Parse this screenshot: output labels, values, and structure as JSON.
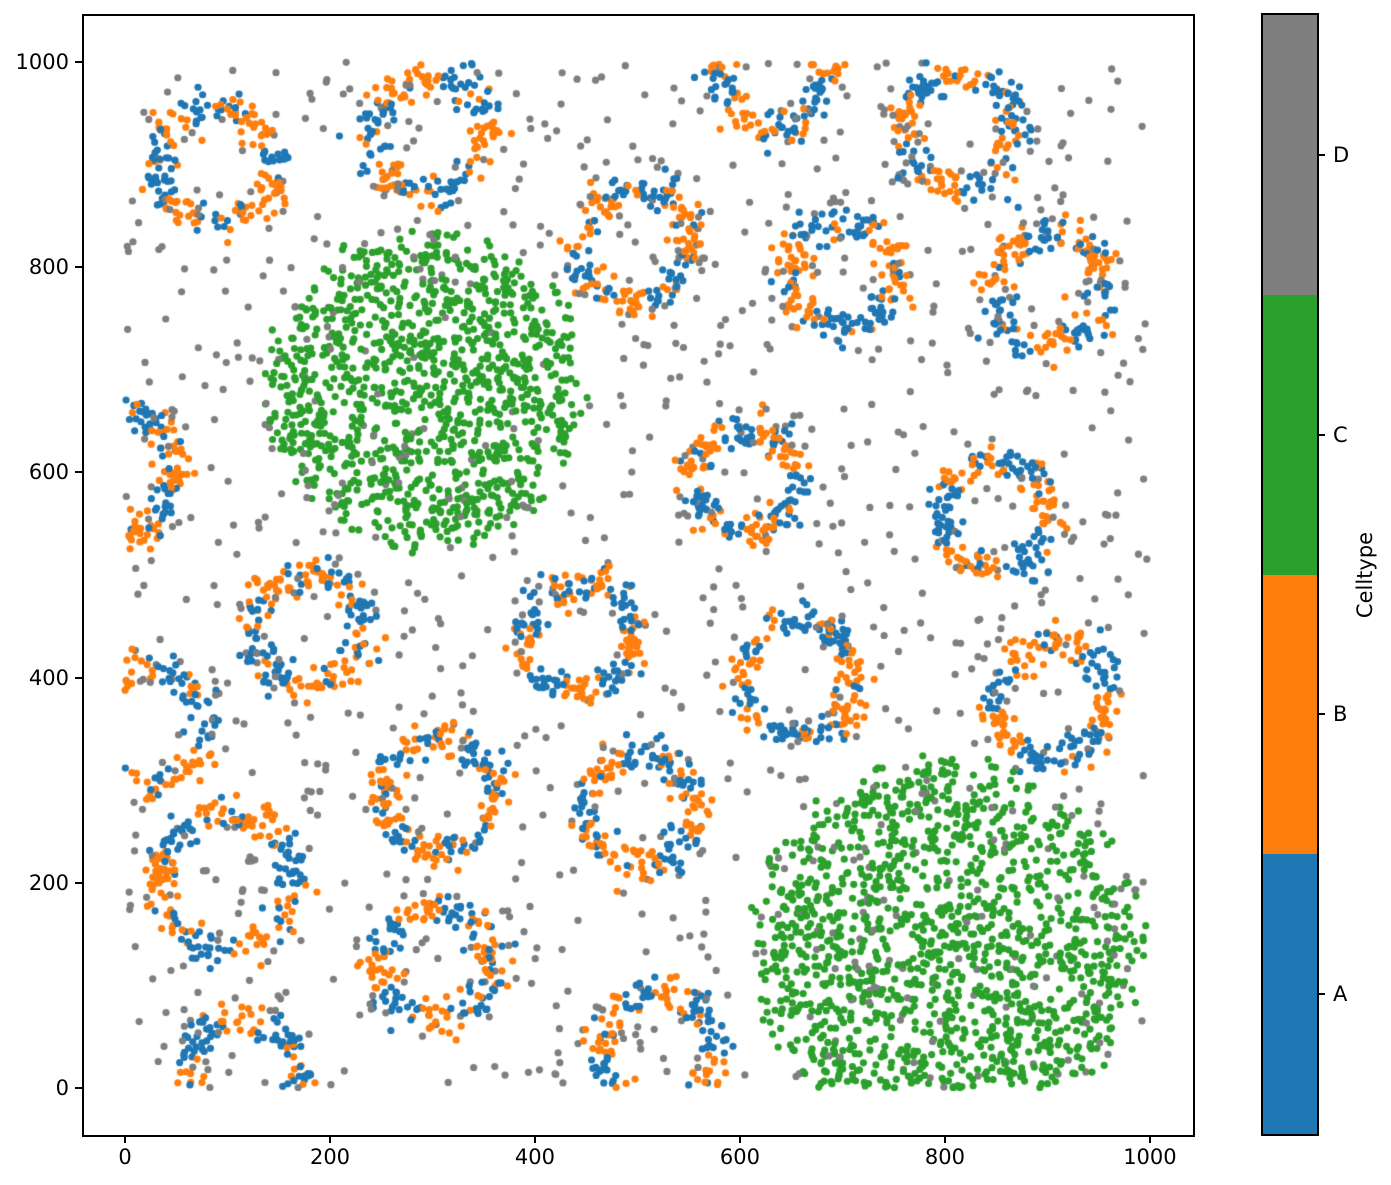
{
  "chart_data": {
    "type": "scatter",
    "title": "",
    "xlabel": "",
    "ylabel": "",
    "xlim": [
      -41,
      1043
    ],
    "ylim": [
      -45,
      1046
    ],
    "data_domain": [
      0,
      1000
    ],
    "xticks": [
      0,
      200,
      400,
      600,
      800,
      1000
    ],
    "yticks": [
      0,
      200,
      400,
      600,
      800,
      1000
    ],
    "grid": false,
    "legend": {
      "title": "Celltype",
      "position": "right-colorbar",
      "entries": [
        {
          "label": "A",
          "color": "#1f77b4"
        },
        {
          "label": "B",
          "color": "#ff7f0e"
        },
        {
          "label": "C",
          "color": "#2ca02c"
        },
        {
          "label": "D",
          "color": "#7f7f7f"
        }
      ]
    },
    "marker_radius_px": 3.6,
    "seed": 1337,
    "clusters": {
      "rings_celltypes": [
        "A",
        "B"
      ],
      "ring_default_points": 185,
      "ring_band_sigma": 9,
      "rings": [
        {
          "x": 88,
          "y": 900,
          "r": 57
        },
        {
          "x": 298,
          "y": 929,
          "r": 57
        },
        {
          "x": 634,
          "y": 985,
          "r": 52
        },
        {
          "x": 815,
          "y": 934,
          "r": 55
        },
        {
          "x": 498,
          "y": 822,
          "r": 55
        },
        {
          "x": 702,
          "y": 795,
          "r": 52
        },
        {
          "x": 900,
          "y": 780,
          "r": 55
        },
        {
          "x": -5,
          "y": 600,
          "r": 56
        },
        {
          "x": 605,
          "y": 593,
          "r": 50
        },
        {
          "x": 849,
          "y": 559,
          "r": 55
        },
        {
          "x": 180,
          "y": 447,
          "r": 55
        },
        {
          "x": 442,
          "y": 439,
          "r": 52
        },
        {
          "x": 659,
          "y": 398,
          "r": 55
        },
        {
          "x": 905,
          "y": 379,
          "r": 55
        },
        {
          "x": 22,
          "y": 354,
          "r": 58
        },
        {
          "x": 305,
          "y": 286,
          "r": 55
        },
        {
          "x": 502,
          "y": 272,
          "r": 55
        },
        {
          "x": 100,
          "y": 201,
          "r": 66,
          "n": 210
        },
        {
          "x": 302,
          "y": 121,
          "r": 55
        },
        {
          "x": 115,
          "y": 9,
          "r": 58
        },
        {
          "x": 520,
          "y": 38,
          "r": 56
        }
      ],
      "blobs_celltype": "C",
      "blobs": [
        {
          "x": 291,
          "y": 682,
          "r": 150,
          "n": 1150
        },
        {
          "x": 800,
          "y": 135,
          "r": 180,
          "n": 1450
        }
      ],
      "noise_celltype": "D",
      "noise_points": 1120
    }
  }
}
